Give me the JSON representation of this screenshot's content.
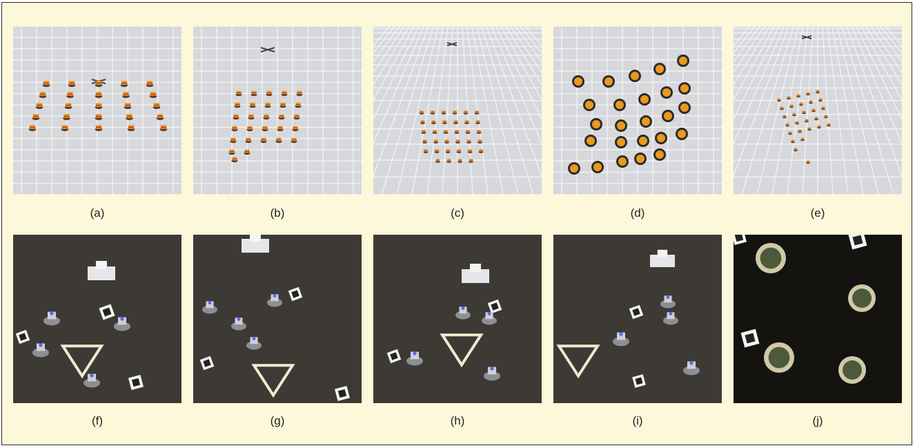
{
  "figure": {
    "panels": [
      {
        "id": "a",
        "label": "(a)",
        "scene": "simulation"
      },
      {
        "id": "b",
        "label": "(b)",
        "scene": "simulation"
      },
      {
        "id": "c",
        "label": "(c)",
        "scene": "simulation"
      },
      {
        "id": "d",
        "label": "(d)",
        "scene": "simulation"
      },
      {
        "id": "e",
        "label": "(e)",
        "scene": "simulation"
      },
      {
        "id": "f",
        "label": "(f)",
        "scene": "lab"
      },
      {
        "id": "g",
        "label": "(g)",
        "scene": "lab"
      },
      {
        "id": "h",
        "label": "(h)",
        "scene": "lab"
      },
      {
        "id": "i",
        "label": "(i)",
        "scene": "lab"
      },
      {
        "id": "j",
        "label": "(j)",
        "scene": "lab-topdown"
      }
    ],
    "colors": {
      "background": "#fdf8d9",
      "sim_floor": "#d6d8dc",
      "lab_floor": "#3d3a35",
      "robot_orange": "#e89a1e",
      "robot_red": "#c23a22"
    }
  }
}
